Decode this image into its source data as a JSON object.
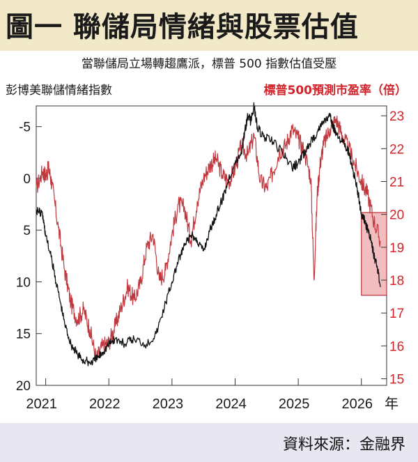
{
  "header": {
    "title": "圖一 聯儲局情緒與股票估值",
    "subtitle": "當聯儲局立場轉趨鷹派，標普 500 指數估值受壓"
  },
  "footer": {
    "source": "資料來源：金融界"
  },
  "colors": {
    "header_bg": "#f1e9c7",
    "footer_bg": "#e7e6f1",
    "fed_series": "#111111",
    "pe_series": "#c0393f",
    "highlight_box": "#e8878a",
    "right_axis": "#d2232a"
  },
  "chart_data": {
    "type": "line",
    "title": "圖一 聯儲局情緒與股票估值",
    "subtitle": "當聯儲局立場轉趨鷹派，標普 500 指數估值受壓",
    "ylabel_left": "彭博美聯儲情緒指數",
    "ylabel_right": "標普500預測市盈率（倍）",
    "x_tick_labels": [
      "2021",
      "2022",
      "2023",
      "2024",
      "2025",
      "2026"
    ],
    "x_unit_label": "年",
    "x_range": [
      2020.85,
      2026.4
    ],
    "left_axis": {
      "ylim": [
        -7,
        20
      ],
      "inverted": true,
      "ticks": [
        -5,
        0,
        5,
        10,
        15,
        20
      ],
      "tick_labels": [
        "-5",
        "0",
        "5",
        "10",
        "15",
        "20"
      ]
    },
    "right_axis": {
      "ylim": [
        14.8,
        23.3
      ],
      "ticks": [
        15,
        16,
        17,
        18,
        19,
        20,
        21,
        22,
        23
      ],
      "tick_labels": [
        "15",
        "16",
        "17",
        "18",
        "19",
        "20",
        "21",
        "22",
        "23"
      ]
    },
    "highlight": {
      "x": [
        2026.0,
        2026.4
      ],
      "left_y": [
        3.3,
        11.3
      ]
    },
    "series": [
      {
        "name": "彭博美聯儲情緒指數",
        "axis": "left",
        "color": "#111111",
        "x": [
          2020.85,
          2020.95,
          2021.0,
          2021.1,
          2021.2,
          2021.3,
          2021.4,
          2021.5,
          2021.6,
          2021.7,
          2021.8,
          2021.9,
          2022.0,
          2022.1,
          2022.25,
          2022.4,
          2022.6,
          2022.75,
          2022.9,
          2023.0,
          2023.1,
          2023.2,
          2023.3,
          2023.4,
          2023.5,
          2023.6,
          2023.7,
          2023.8,
          2023.9,
          2024.0,
          2024.1,
          2024.15,
          2024.2,
          2024.25,
          2024.3,
          2024.35,
          2024.45,
          2024.6,
          2024.75,
          2024.9,
          2025.0,
          2025.1,
          2025.2,
          2025.3,
          2025.4,
          2025.5,
          2025.55,
          2025.6,
          2025.7,
          2025.8,
          2025.85,
          2025.9,
          2025.95,
          2026.0,
          2026.05,
          2026.1,
          2026.15,
          2026.2,
          2026.25,
          2026.3
        ],
        "values": [
          3.0,
          3.5,
          5.5,
          8.0,
          11.0,
          14.0,
          16.0,
          17.0,
          17.6,
          17.8,
          17.5,
          16.8,
          16.0,
          15.5,
          16.0,
          15.5,
          16.0,
          15.0,
          12.0,
          10.0,
          8.0,
          6.5,
          5.5,
          6.0,
          7.0,
          5.0,
          3.5,
          2.0,
          0.0,
          -1.5,
          -2.5,
          -4.5,
          -6.0,
          -5.5,
          -7.0,
          -5.0,
          -4.0,
          -3.5,
          -2.5,
          -1.0,
          -1.5,
          -2.5,
          -3.5,
          -4.5,
          -5.5,
          -6.0,
          -5.0,
          -4.5,
          -3.5,
          -2.5,
          -1.0,
          0.0,
          1.5,
          3.5,
          4.0,
          5.0,
          6.0,
          7.5,
          8.5,
          10.5
        ]
      },
      {
        "name": "標普500預測市盈率（倍）",
        "axis": "right",
        "color": "#c0393f",
        "x": [
          2020.85,
          2020.95,
          2021.0,
          2021.05,
          2021.1,
          2021.2,
          2021.3,
          2021.4,
          2021.5,
          2021.6,
          2021.7,
          2021.8,
          2021.9,
          2022.0,
          2022.1,
          2022.2,
          2022.3,
          2022.4,
          2022.5,
          2022.6,
          2022.7,
          2022.8,
          2022.9,
          2023.0,
          2023.1,
          2023.2,
          2023.3,
          2023.4,
          2023.5,
          2023.6,
          2023.7,
          2023.8,
          2023.9,
          2024.0,
          2024.1,
          2024.2,
          2024.3,
          2024.4,
          2024.5,
          2024.6,
          2024.7,
          2024.8,
          2024.9,
          2025.0,
          2025.1,
          2025.2,
          2025.25,
          2025.3,
          2025.35,
          2025.4,
          2025.5,
          2025.6,
          2025.7,
          2025.8,
          2025.9,
          2026.0,
          2026.1,
          2026.2,
          2026.3
        ],
        "values": [
          20.8,
          21.3,
          21.2,
          21.4,
          20.9,
          19.6,
          18.3,
          17.3,
          16.8,
          17.1,
          16.5,
          15.6,
          16.0,
          16.1,
          16.6,
          17.2,
          17.8,
          17.4,
          17.9,
          19.0,
          19.4,
          18.0,
          18.3,
          19.4,
          20.3,
          20.2,
          19.2,
          20.4,
          21.1,
          21.5,
          21.7,
          21.2,
          21.0,
          21.4,
          22.1,
          21.8,
          22.4,
          21.0,
          20.8,
          21.3,
          21.9,
          22.1,
          22.6,
          22.3,
          21.9,
          21.1,
          18.0,
          20.6,
          21.6,
          22.1,
          22.6,
          22.9,
          22.4,
          22.0,
          21.5,
          21.0,
          20.6,
          19.8,
          19.2
        ]
      }
    ]
  }
}
